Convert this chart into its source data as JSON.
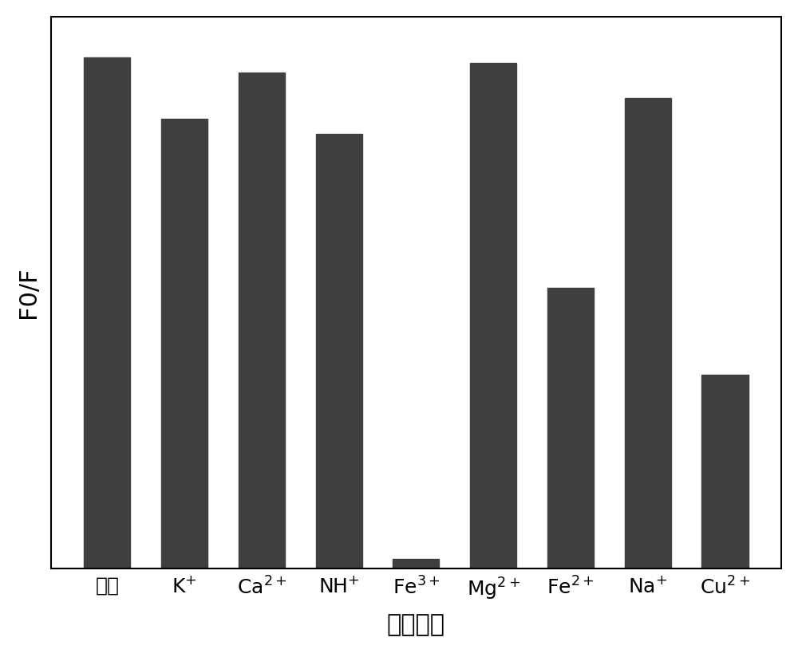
{
  "categories_raw": [
    "空白",
    "K",
    "Ca",
    "NH",
    "Fe",
    "Mg",
    "Fe",
    "Na",
    "Cu"
  ],
  "superscripts": [
    "",
    "+",
    "2+",
    "+",
    "3+",
    "2+",
    "2+",
    "+",
    "2+"
  ],
  "values": [
    1.0,
    0.88,
    0.97,
    0.85,
    0.02,
    0.99,
    0.55,
    0.92,
    0.38
  ],
  "bar_color": "#3f3f3f",
  "ylabel": "F0/F",
  "xlabel": "离子种类",
  "ylim": [
    0,
    1.08
  ],
  "bar_width": 0.6,
  "figsize": [
    10.0,
    8.19
  ],
  "dpi": 100,
  "spine_linewidth": 1.5,
  "tick_fontsize": 18,
  "label_fontsize": 22,
  "ylabel_fontsize": 22
}
